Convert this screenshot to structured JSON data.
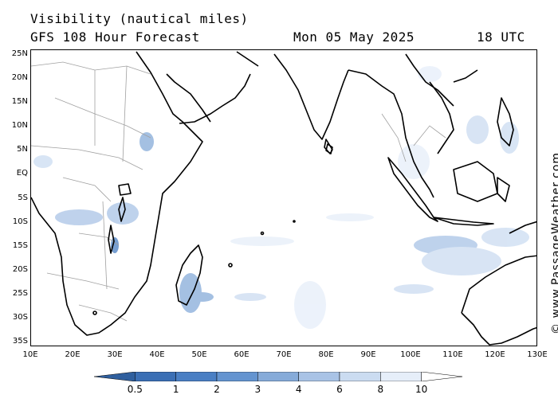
{
  "header": {
    "title": "Visibility (nautical miles)",
    "subtitle": "GFS 108 Hour Forecast",
    "date": "Mon 05 May 2025",
    "time": "18 UTC"
  },
  "copyright": "© www.PassageWeather.com",
  "map": {
    "region": "Indian Ocean",
    "lon_range": [
      10,
      130
    ],
    "lat_range": [
      -36,
      26
    ],
    "lat_labels": [
      "25N",
      "20N",
      "15N",
      "10N",
      "5N",
      "EQ",
      "5S",
      "10S",
      "15S",
      "20S",
      "25S",
      "30S",
      "35S"
    ],
    "lat_values": [
      25,
      20,
      15,
      10,
      5,
      0,
      -5,
      -10,
      -15,
      -20,
      -25,
      -30,
      -35
    ],
    "lon_labels": [
      "10E",
      "20E",
      "30E",
      "40E",
      "50E",
      "60E",
      "70E",
      "80E",
      "90E",
      "100E",
      "110E",
      "120E",
      "130E"
    ],
    "lon_values": [
      10,
      20,
      30,
      40,
      50,
      60,
      70,
      80,
      90,
      100,
      110,
      120,
      130
    ],
    "land_color": "#ffffff",
    "coast_color": "#000000",
    "border_color": "#a0a0a0"
  },
  "legend": {
    "labels": [
      "0.5",
      "1",
      "2",
      "3",
      "4",
      "6",
      "8",
      "10"
    ],
    "colors": [
      "#3b6fb5",
      "#4a7fc4",
      "#6494d0",
      "#86abd9",
      "#a9c3e6",
      "#cbdcf1",
      "#e6eef9",
      "#ffffff"
    ]
  }
}
